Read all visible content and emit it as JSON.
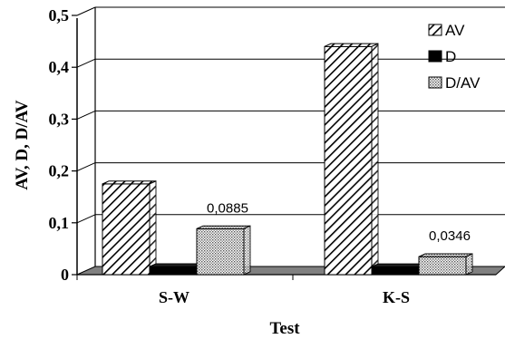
{
  "chart_data": {
    "type": "bar",
    "title": "",
    "xlabel": "Test",
    "ylabel": "AV, D, D/AV",
    "categories": [
      "S-W",
      "K-S"
    ],
    "ylim": [
      0,
      0.5
    ],
    "yticks": [
      "0",
      "0,1",
      "0,2",
      "0,3",
      "0,4",
      "0,5"
    ],
    "grid": true,
    "legend_position": "top-right",
    "series": [
      {
        "name": "AV",
        "values": [
          0.175,
          0.44
        ],
        "pattern": "diagonal-hatch",
        "color": "#000000"
      },
      {
        "name": "D",
        "values": [
          0.0155,
          0.0152
        ],
        "pattern": "solid",
        "color": "#000000"
      },
      {
        "name": "D/AV",
        "values": [
          0.0885,
          0.0346
        ],
        "pattern": "dotted",
        "color": "#bbbbbb"
      }
    ],
    "data_labels": [
      {
        "series": "D/AV",
        "category": "S-W",
        "text": "0,0885"
      },
      {
        "series": "D/AV",
        "category": "K-S",
        "text": "0,0346"
      }
    ],
    "floor_color": "#808080"
  }
}
